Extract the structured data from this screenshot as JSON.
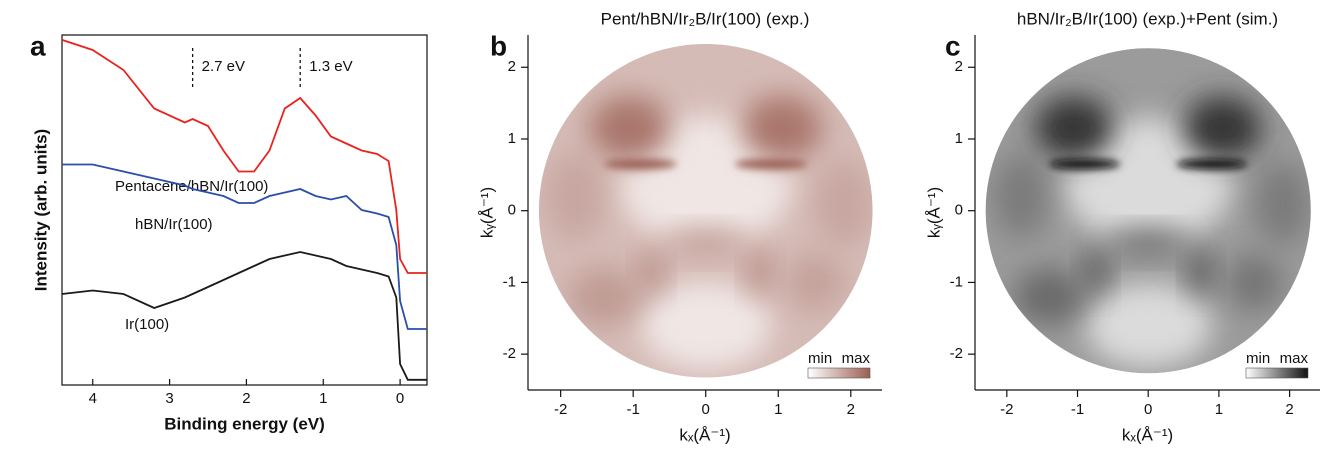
{
  "chart_data": [
    {
      "type": "line",
      "panel": "a",
      "xlabel": "Binding energy (eV)",
      "ylabel": "Intensity (arb. units)",
      "x": [
        4.4,
        4.0,
        3.6,
        3.2,
        2.8,
        2.7,
        2.5,
        2.3,
        2.1,
        1.9,
        1.7,
        1.5,
        1.3,
        1.1,
        0.9,
        0.7,
        0.5,
        0.3,
        0.15,
        0.05,
        0.0,
        -0.1,
        -0.35
      ],
      "series": [
        {
          "name": "Pentacene/hBN/Ir(100)",
          "color": "#e8231f",
          "values": [
            98.6,
            95.7,
            90,
            79,
            75,
            76,
            74,
            67,
            61,
            61,
            67,
            79,
            82,
            77,
            71,
            69,
            67,
            66,
            64,
            50,
            36,
            32,
            32
          ]
        },
        {
          "name": "hBN/Ir(100)",
          "color": "#2a4fa8",
          "values": [
            63,
            63,
            61,
            59,
            57,
            56,
            55,
            54,
            52,
            52,
            54,
            55,
            56,
            54,
            53,
            54,
            50,
            49,
            48,
            40,
            24,
            16,
            16
          ]
        },
        {
          "name": "Ir(100)",
          "color": "#1a1a1a",
          "values": [
            26,
            27,
            26,
            22,
            25,
            26,
            28,
            30,
            32,
            34,
            36,
            37,
            38,
            37,
            36,
            34,
            33,
            32,
            31,
            25,
            6,
            1.5,
            1.5
          ]
        }
      ],
      "annotations": [
        {
          "x": 2.7,
          "label": "2.7 eV"
        },
        {
          "x": 1.3,
          "label": "1.3 eV"
        }
      ],
      "xlim": [
        4.4,
        -0.35
      ],
      "xticks": [
        4,
        3,
        2,
        1,
        0
      ],
      "ylim": [
        0,
        100
      ]
    },
    {
      "type": "momentum-map",
      "panel": "b",
      "title": "Pent/hBN/Ir₂B/Ir(100) (exp.)",
      "xlabel": "kₓ(Å⁻¹)",
      "ylabel": "kᵧ(Å⁻¹)",
      "xlim": [
        -2.45,
        2.43
      ],
      "ylim": [
        -2.5,
        2.45
      ],
      "xticks": [
        -2,
        -1,
        0,
        1,
        2
      ],
      "yticks": [
        -2,
        -1,
        0,
        1,
        2
      ],
      "colormap": [
        "#ffffff",
        "#9a5e52"
      ],
      "colorbar_labels": [
        "min",
        "max"
      ]
    },
    {
      "type": "momentum-map",
      "panel": "c",
      "title": "hBN/Ir₂B/Ir(100) (exp.)+Pent (sim.)",
      "xlabel": "kₓ(Å⁻¹)",
      "ylabel": "kᵧ(Å⁻¹)",
      "xlim": [
        -2.45,
        2.43
      ],
      "ylim": [
        -2.5,
        2.45
      ],
      "xticks": [
        -2,
        -1,
        0,
        1,
        2
      ],
      "yticks": [
        -2,
        -1,
        0,
        1,
        2
      ],
      "colormap": [
        "#ffffff",
        "#111111"
      ],
      "colorbar_labels": [
        "min",
        "max"
      ]
    }
  ]
}
